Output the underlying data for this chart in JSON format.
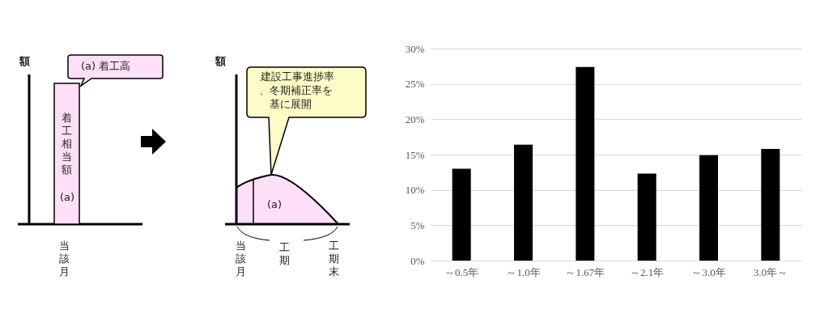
{
  "chart_data": [
    {
      "type": "other",
      "annotations": [
        "額",
        "(a) 着工高",
        "着工相当額",
        "(a)",
        "当該月",
        "額",
        "建設工事進捗率",
        "、冬期補正率を",
        "基に展開",
        "(a)",
        "当該月",
        "工期",
        "工期末"
      ]
    },
    {
      "type": "bar",
      "categories": [
        "～0.5年",
        "～1.0年",
        "～1.67年",
        "～2.1年",
        "～3.0年",
        "3.0年～"
      ],
      "values": [
        13.0,
        16.4,
        27.4,
        12.3,
        14.9,
        15.8
      ],
      "color": "#000000",
      "ylim": [
        0,
        30
      ],
      "yticks": [
        {
          "value": 0,
          "label": "0%"
        },
        {
          "value": 5,
          "label": "5%"
        },
        {
          "value": 10,
          "label": "10%"
        },
        {
          "value": 15,
          "label": "15%"
        },
        {
          "value": 20,
          "label": "20%"
        },
        {
          "value": 25,
          "label": "25%"
        },
        {
          "value": 30,
          "label": "30%"
        }
      ],
      "grid": "y"
    }
  ]
}
